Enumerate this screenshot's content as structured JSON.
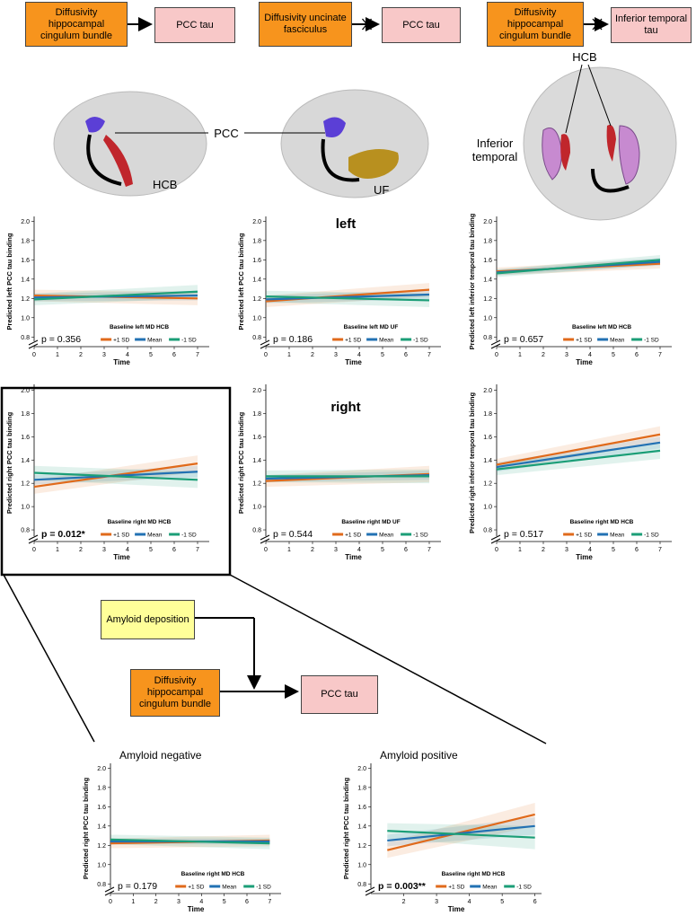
{
  "top_diagrams": [
    {
      "source": "Diffusivity hippocampal cingulum bundle",
      "target": "PCC tau",
      "blocked": false
    },
    {
      "source": "Diffusivity uncinate fasciculus",
      "target": "PCC tau",
      "blocked": true
    },
    {
      "source": "Diffusivity hippocampal cingulum bundle",
      "target": "Inferior temporal tau",
      "blocked": true
    }
  ],
  "brain_labels": {
    "pcc": "PCC",
    "hcb_left": "HCB",
    "uf": "UF",
    "hcb_top": "HCB",
    "inferior_temporal": "Inferior temporal"
  },
  "section_labels": [
    "left",
    "right"
  ],
  "moderation_diagram": {
    "moderator": "Amyloid deposition",
    "source": "Diffusivity hippocampal cingulum bundle",
    "target": "PCC tau"
  },
  "chart_data": [
    {
      "type": "line",
      "ylabel": "Predicted left PCC tau binding",
      "xlabel": "Time",
      "legend_title": "Baseline left MD HCB",
      "annotation": "p = 0.356",
      "annotation_bold": false,
      "x": [
        0,
        7
      ],
      "xlim": [
        0,
        7.5
      ],
      "ylim": [
        0.7,
        2.05
      ],
      "xticks": [
        0,
        1,
        2,
        3,
        4,
        5,
        6,
        7
      ],
      "yticks": [
        0.8,
        {
          "value": 1,
          "label": "1.0"
        },
        1.2,
        1.4,
        1.6,
        1.8,
        {
          "value": 2,
          "label": "2.0"
        }
      ],
      "series": [
        {
          "name": "+1 SD",
          "color": "#e06a1b",
          "values": [
            1.23,
            1.2
          ],
          "lower": [
            1.17,
            1.13
          ],
          "upper": [
            1.29,
            1.27
          ]
        },
        {
          "name": "Mean",
          "color": "#2271b3",
          "values": [
            1.21,
            1.23
          ],
          "lower": [
            1.17,
            1.18
          ],
          "upper": [
            1.25,
            1.28
          ]
        },
        {
          "name": "-1 SD",
          "color": "#1b9e77",
          "values": [
            1.19,
            1.27
          ],
          "lower": [
            1.13,
            1.2
          ],
          "upper": [
            1.25,
            1.34
          ]
        }
      ]
    },
    {
      "type": "line",
      "ylabel": "Predicted left PCC tau binding",
      "xlabel": "Time",
      "legend_title": "Baseline left MD UF",
      "annotation": "p = 0.186",
      "annotation_bold": false,
      "x": [
        0,
        7
      ],
      "xlim": [
        0,
        7.5
      ],
      "ylim": [
        0.7,
        2.05
      ],
      "xticks": [
        0,
        1,
        2,
        3,
        4,
        5,
        6,
        7
      ],
      "yticks": [
        0.8,
        {
          "value": 1,
          "label": "1.0"
        },
        1.2,
        1.4,
        1.6,
        1.8,
        {
          "value": 2,
          "label": "2.0"
        }
      ],
      "series": [
        {
          "name": "+1 SD",
          "color": "#e06a1b",
          "values": [
            1.17,
            1.29
          ],
          "lower": [
            1.11,
            1.22
          ],
          "upper": [
            1.23,
            1.36
          ]
        },
        {
          "name": "Mean",
          "color": "#2271b3",
          "values": [
            1.19,
            1.24
          ],
          "lower": [
            1.15,
            1.19
          ],
          "upper": [
            1.23,
            1.29
          ]
        },
        {
          "name": "-1 SD",
          "color": "#1b9e77",
          "values": [
            1.22,
            1.18
          ],
          "lower": [
            1.16,
            1.11
          ],
          "upper": [
            1.28,
            1.25
          ]
        }
      ]
    },
    {
      "type": "line",
      "ylabel": "Predicted left inferior temporal tau binding",
      "xlabel": "Time",
      "legend_title": "Baseline left MD HCB",
      "annotation": "p = 0.657",
      "annotation_bold": false,
      "x": [
        0,
        7
      ],
      "xlim": [
        0,
        7.5
      ],
      "ylim": [
        0.7,
        2.05
      ],
      "xticks": [
        0,
        1,
        2,
        3,
        4,
        5,
        6,
        7
      ],
      "yticks": [
        0.8,
        {
          "value": 1,
          "label": "1.0"
        },
        1.2,
        1.4,
        1.6,
        1.8,
        {
          "value": 2,
          "label": "2.0"
        }
      ],
      "series": [
        {
          "name": "+1 SD",
          "color": "#e06a1b",
          "values": [
            1.48,
            1.56
          ],
          "lower": [
            1.44,
            1.51
          ],
          "upper": [
            1.52,
            1.61
          ]
        },
        {
          "name": "Mean",
          "color": "#2271b3",
          "values": [
            1.47,
            1.58
          ],
          "lower": [
            1.44,
            1.54
          ],
          "upper": [
            1.5,
            1.62
          ]
        },
        {
          "name": "-1 SD",
          "color": "#1b9e77",
          "values": [
            1.46,
            1.6
          ],
          "lower": [
            1.42,
            1.55
          ],
          "upper": [
            1.5,
            1.65
          ]
        }
      ]
    },
    {
      "type": "line",
      "ylabel": "Predicted right PCC tau binding",
      "xlabel": "Time",
      "legend_title": "Baseline right MD HCB",
      "annotation": "p = 0.012*",
      "annotation_bold": true,
      "x": [
        0,
        7
      ],
      "xlim": [
        0,
        7.5
      ],
      "ylim": [
        0.7,
        2.05
      ],
      "xticks": [
        0,
        1,
        2,
        3,
        4,
        5,
        6,
        7
      ],
      "yticks": [
        0.8,
        {
          "value": 1,
          "label": "1.0"
        },
        1.2,
        1.4,
        1.6,
        1.8,
        {
          "value": 2,
          "label": "2.0"
        }
      ],
      "series": [
        {
          "name": "+1 SD",
          "color": "#e06a1b",
          "values": [
            1.17,
            1.37
          ],
          "lower": [
            1.11,
            1.3
          ],
          "upper": [
            1.23,
            1.44
          ]
        },
        {
          "name": "Mean",
          "color": "#2271b3",
          "values": [
            1.23,
            1.3
          ],
          "lower": [
            1.19,
            1.25
          ],
          "upper": [
            1.27,
            1.35
          ]
        },
        {
          "name": "-1 SD",
          "color": "#1b9e77",
          "values": [
            1.29,
            1.23
          ],
          "lower": [
            1.23,
            1.16
          ],
          "upper": [
            1.35,
            1.3
          ]
        }
      ]
    },
    {
      "type": "line",
      "ylabel": "Predicted right PCC tau binding",
      "xlabel": "Time",
      "legend_title": "Baseline right MD UF",
      "annotation": "p = 0.544",
      "annotation_bold": false,
      "x": [
        0,
        7
      ],
      "xlim": [
        0,
        7.5
      ],
      "ylim": [
        0.7,
        2.05
      ],
      "xticks": [
        0,
        1,
        2,
        3,
        4,
        5,
        6,
        7
      ],
      "yticks": [
        0.8,
        {
          "value": 1,
          "label": "1.0"
        },
        1.2,
        1.4,
        1.6,
        1.8,
        {
          "value": 2,
          "label": "2.0"
        }
      ],
      "series": [
        {
          "name": "+1 SD",
          "color": "#e06a1b",
          "values": [
            1.22,
            1.28
          ],
          "lower": [
            1.17,
            1.21
          ],
          "upper": [
            1.27,
            1.35
          ]
        },
        {
          "name": "Mean",
          "color": "#2271b3",
          "values": [
            1.24,
            1.27
          ],
          "lower": [
            1.21,
            1.23
          ],
          "upper": [
            1.27,
            1.31
          ]
        },
        {
          "name": "-1 SD",
          "color": "#1b9e77",
          "values": [
            1.26,
            1.26
          ],
          "lower": [
            1.21,
            1.2
          ],
          "upper": [
            1.31,
            1.32
          ]
        }
      ]
    },
    {
      "type": "line",
      "ylabel": "Predicted right inferior temporal tau binding",
      "xlabel": "Time",
      "legend_title": "Baseline right MD HCB",
      "annotation": "p = 0.517",
      "annotation_bold": false,
      "x": [
        0,
        7
      ],
      "xlim": [
        0,
        7.5
      ],
      "ylim": [
        0.7,
        2.05
      ],
      "xticks": [
        0,
        1,
        2,
        3,
        4,
        5,
        6,
        7
      ],
      "yticks": [
        0.8,
        {
          "value": 1,
          "label": "1.0"
        },
        1.2,
        1.4,
        1.6,
        1.8,
        {
          "value": 2,
          "label": "2.0"
        }
      ],
      "series": [
        {
          "name": "+1 SD",
          "color": "#e06a1b",
          "values": [
            1.36,
            1.62
          ],
          "lower": [
            1.31,
            1.55
          ],
          "upper": [
            1.41,
            1.69
          ]
        },
        {
          "name": "Mean",
          "color": "#2271b3",
          "values": [
            1.34,
            1.55
          ],
          "lower": [
            1.3,
            1.5
          ],
          "upper": [
            1.38,
            1.6
          ]
        },
        {
          "name": "-1 SD",
          "color": "#1b9e77",
          "values": [
            1.32,
            1.48
          ],
          "lower": [
            1.27,
            1.41
          ],
          "upper": [
            1.37,
            1.55
          ]
        }
      ]
    },
    {
      "type": "line",
      "title": "Amyloid negative",
      "ylabel": "Predicted right PCC tau binding",
      "xlabel": "Time",
      "legend_title": "Baseline right MD HCB",
      "annotation": "p = 0.179",
      "annotation_bold": false,
      "x": [
        0,
        7
      ],
      "xlim": [
        0,
        7.5
      ],
      "ylim": [
        0.7,
        2.05
      ],
      "xticks": [
        0,
        1,
        2,
        3,
        4,
        5,
        6,
        7
      ],
      "yticks": [
        0.8,
        {
          "value": 1,
          "label": "1.0"
        },
        1.2,
        1.4,
        1.6,
        1.8,
        {
          "value": 2,
          "label": "2.0"
        }
      ],
      "series": [
        {
          "name": "+1 SD",
          "color": "#e06a1b",
          "values": [
            1.22,
            1.25
          ],
          "lower": [
            1.17,
            1.19
          ],
          "upper": [
            1.27,
            1.31
          ]
        },
        {
          "name": "Mean",
          "color": "#2271b3",
          "values": [
            1.24,
            1.24
          ],
          "lower": [
            1.21,
            1.21
          ],
          "upper": [
            1.27,
            1.27
          ]
        },
        {
          "name": "-1 SD",
          "color": "#1b9e77",
          "values": [
            1.26,
            1.22
          ],
          "lower": [
            1.21,
            1.16
          ],
          "upper": [
            1.31,
            1.28
          ]
        }
      ]
    },
    {
      "type": "line",
      "title": "Amyloid positive",
      "ylabel": "Predicted right PCC tau binding",
      "xlabel": "Time",
      "legend_title": "Baseline right MD HCB",
      "annotation": "p = 0.003**",
      "annotation_bold": true,
      "x": [
        1.5,
        6
      ],
      "xlim": [
        1,
        6.2
      ],
      "ylim": [
        0.7,
        2.05
      ],
      "xticks": [
        2,
        3,
        4,
        5,
        6
      ],
      "yticks": [
        0.8,
        {
          "value": 1,
          "label": "1.0"
        },
        1.2,
        1.4,
        1.6,
        1.8,
        {
          "value": 2,
          "label": "2.0"
        }
      ],
      "series": [
        {
          "name": "+1 SD",
          "color": "#e06a1b",
          "values": [
            1.15,
            1.52
          ],
          "lower": [
            1.07,
            1.4
          ],
          "upper": [
            1.23,
            1.64
          ]
        },
        {
          "name": "Mean",
          "color": "#2271b3",
          "values": [
            1.25,
            1.4
          ],
          "lower": [
            1.19,
            1.31
          ],
          "upper": [
            1.31,
            1.49
          ]
        },
        {
          "name": "-1 SD",
          "color": "#1b9e77",
          "values": [
            1.35,
            1.28
          ],
          "lower": [
            1.27,
            1.16
          ],
          "upper": [
            1.43,
            1.4
          ]
        }
      ]
    }
  ]
}
